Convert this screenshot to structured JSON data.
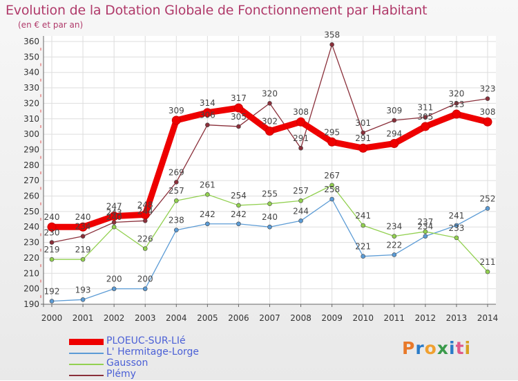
{
  "header": {
    "title": "Evolution de la Dotation Globale de Fonctionnement par Habitant",
    "subtitle": "(en € et par an)"
  },
  "logo": {
    "text": "Proxiti",
    "colors": [
      "#e8792a",
      "#2a7bc8",
      "#f0a030",
      "#3a9a4a",
      "#2a7bc8",
      "#e05a8a",
      "#d8a020"
    ]
  },
  "chart_data": {
    "type": "line",
    "title": "Evolution de la Dotation Globale de Fonctionnement par Habitant",
    "subtitle": "(en € et par an)",
    "xlabel": "",
    "ylabel": "",
    "categories": [
      "2000",
      "2001",
      "2002",
      "2003",
      "2004",
      "2005",
      "2006",
      "2007",
      "2008",
      "2009",
      "2010",
      "2011",
      "2012",
      "2013",
      "2014"
    ],
    "ylim": [
      190,
      360
    ],
    "yticks": [
      190,
      200,
      210,
      220,
      230,
      240,
      250,
      260,
      270,
      280,
      290,
      300,
      310,
      320,
      330,
      340,
      350,
      360
    ],
    "grid": true,
    "legend_position": "bottom-left",
    "series": [
      {
        "name": "PLOEUC-SUR-LIé",
        "color": "#ee0000",
        "values": [
          240,
          240,
          247,
          248,
          309,
          314,
          317,
          302,
          308,
          295,
          291,
          294,
          305,
          313,
          308
        ]
      },
      {
        "name": "L' Hermitage-Lorge",
        "color": "#5b9bd5",
        "values": [
          192,
          193,
          200,
          200,
          238,
          242,
          242,
          240,
          244,
          258,
          221,
          222,
          234,
          241,
          252
        ]
      },
      {
        "name": "Gausson",
        "color": "#92d050",
        "values": [
          219,
          219,
          240,
          226,
          257,
          261,
          254,
          255,
          257,
          267,
          241,
          234,
          237,
          233,
          211
        ]
      },
      {
        "name": "Plémy",
        "color": "#8a2f3a",
        "values": [
          230,
          234,
          243,
          244,
          269,
          306,
          305,
          320,
          291,
          358,
          301,
          309,
          311,
          320,
          323
        ]
      }
    ],
    "labels": [
      [
        "240",
        "240",
        "247",
        "248",
        "309",
        "314",
        "317",
        "302",
        "308",
        "295",
        "291",
        "294",
        "305",
        "313",
        "308"
      ],
      [
        "192",
        "193",
        "200",
        "200",
        "238",
        "242",
        "242",
        "240",
        "244",
        "258",
        "221",
        "222",
        "234",
        "241",
        "252"
      ],
      [
        "219",
        "219",
        "240",
        "226",
        "257",
        "261",
        "254",
        "255",
        "257",
        "267",
        "241",
        "234",
        "237",
        "233",
        "211"
      ],
      [
        "230",
        "234",
        "243",
        "244",
        "269",
        "306",
        "305",
        "320",
        "291",
        "358",
        "301",
        "309",
        "311",
        "320",
        "323"
      ]
    ]
  }
}
